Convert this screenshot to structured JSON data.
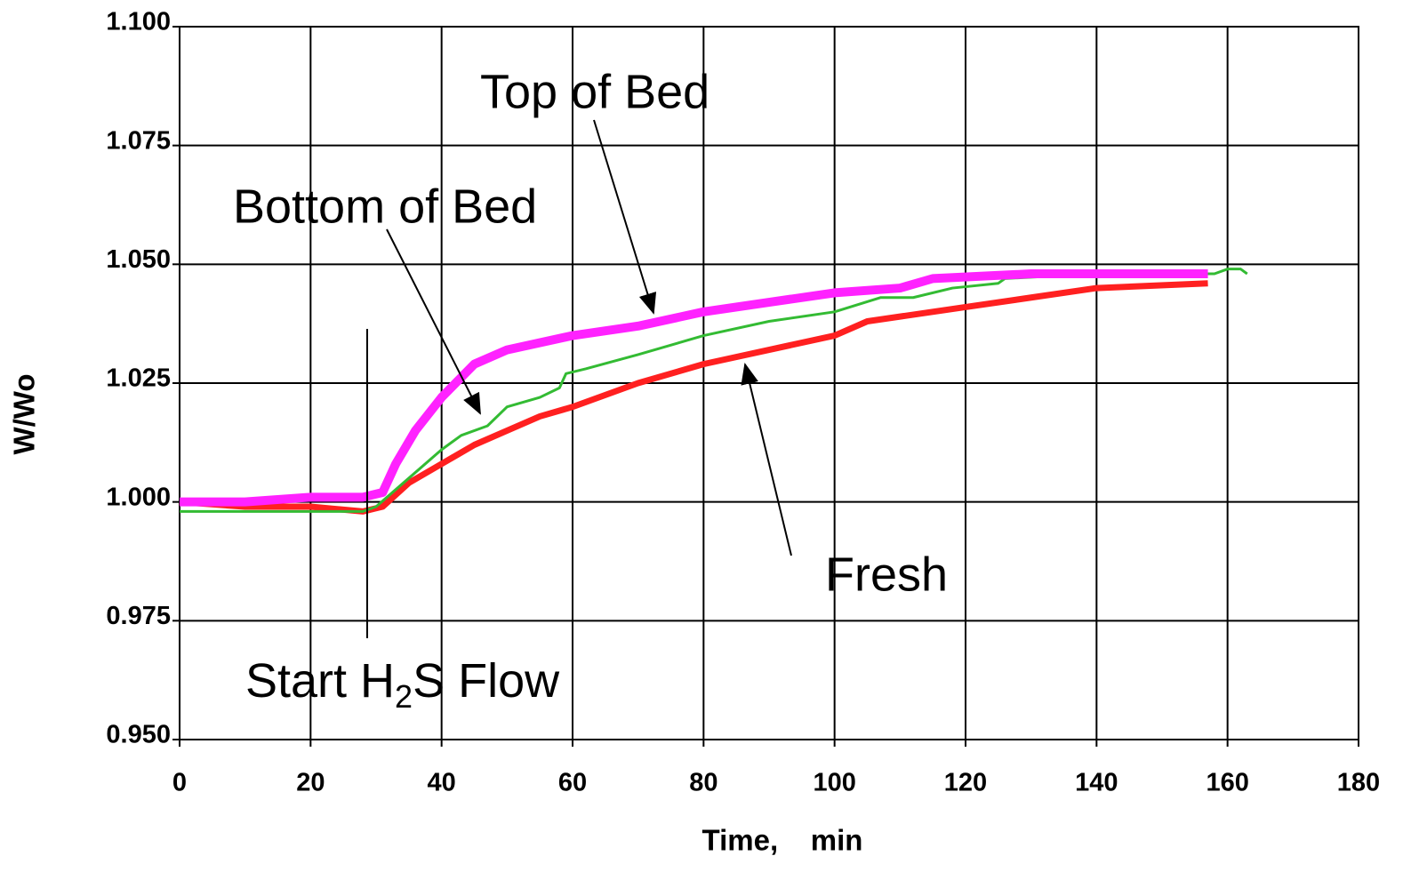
{
  "chart_data": {
    "type": "line",
    "xlabel": "Time,    min",
    "ylabel": "W/Wo",
    "xlim": [
      0,
      180
    ],
    "xticks": [
      0,
      20,
      40,
      60,
      80,
      100,
      120,
      140,
      160,
      180
    ],
    "ylim": [
      0.95,
      1.1
    ],
    "yticks": [
      {
        "value": 0.95,
        "label": "0.950"
      },
      {
        "value": 0.975,
        "label": "0.975"
      },
      {
        "value": 1.0,
        "label": "1.000"
      },
      {
        "value": 1.025,
        "label": "1.025"
      },
      {
        "value": 1.05,
        "label": "1.050"
      },
      {
        "value": 1.075,
        "label": "1.075"
      },
      {
        "value": 1.1,
        "label": "1.100"
      }
    ],
    "grid": true,
    "series": [
      {
        "name": "Fresh",
        "color": "#ff2020",
        "x": [
          0,
          10,
          20,
          28,
          31,
          35,
          40,
          45,
          50,
          55,
          60,
          70,
          80,
          90,
          100,
          105,
          110,
          120,
          130,
          140,
          157
        ],
        "values": [
          1.0,
          0.999,
          0.999,
          0.998,
          0.999,
          1.004,
          1.008,
          1.012,
          1.015,
          1.018,
          1.02,
          1.025,
          1.029,
          1.032,
          1.035,
          1.038,
          1.039,
          1.041,
          1.043,
          1.045,
          1.046
        ]
      },
      {
        "name": "Bottom of Bed",
        "color": "#33bb33",
        "x": [
          0,
          28,
          30,
          35,
          40,
          43,
          47,
          50,
          55,
          58,
          59,
          62,
          70,
          80,
          90,
          100,
          107,
          112,
          118,
          125,
          126,
          140,
          158,
          160,
          162,
          163
        ],
        "values": [
          0.998,
          0.998,
          0.999,
          1.005,
          1.011,
          1.014,
          1.016,
          1.02,
          1.022,
          1.024,
          1.027,
          1.028,
          1.031,
          1.035,
          1.038,
          1.04,
          1.043,
          1.043,
          1.045,
          1.046,
          1.047,
          1.048,
          1.048,
          1.049,
          1.049,
          1.048
        ]
      },
      {
        "name": "Top of Bed",
        "color": "#ff22ff",
        "x": [
          0,
          10,
          20,
          28,
          31,
          33,
          36,
          40,
          45,
          50,
          60,
          70,
          80,
          90,
          100,
          110,
          115,
          130,
          157
        ],
        "values": [
          1.0,
          1.0,
          1.001,
          1.001,
          1.002,
          1.008,
          1.015,
          1.022,
          1.029,
          1.032,
          1.035,
          1.037,
          1.04,
          1.042,
          1.044,
          1.045,
          1.047,
          1.048,
          1.048
        ]
      }
    ],
    "annotations": {
      "start": [
        "Start H",
        "2",
        "S Flow"
      ]
    }
  }
}
